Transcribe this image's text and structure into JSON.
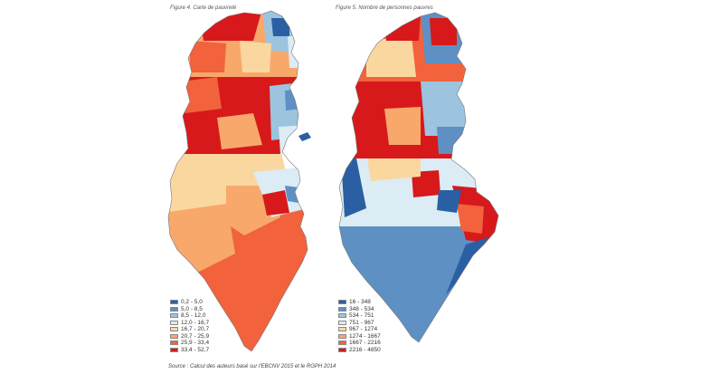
{
  "figure_left": {
    "title": "Figure 4. Carte de pauvreté",
    "legend": [
      {
        "label": "0,2 - 5,0",
        "color": "#2b5fa3"
      },
      {
        "label": "5,0 - 8,5",
        "color": "#5e90c4"
      },
      {
        "label": "8,5 - 12,0",
        "color": "#9cc4de"
      },
      {
        "label": "12,0 - 16,7",
        "color": "#dcecf4"
      },
      {
        "label": "16,7 - 20,7",
        "color": "#fbd7a0"
      },
      {
        "label": "20,7 - 25,9",
        "color": "#f7a86a"
      },
      {
        "label": "25,9 - 33,4",
        "color": "#f2623c"
      },
      {
        "label": "33,4 - 52,7",
        "color": "#d7191c"
      }
    ]
  },
  "figure_right": {
    "title": "Figure 5. Nombre de personnes pauvres",
    "legend": [
      {
        "label": "16 - 348",
        "color": "#2b5fa3"
      },
      {
        "label": "348 - 534",
        "color": "#5e90c4"
      },
      {
        "label": "534 - 751",
        "color": "#9cc4de"
      },
      {
        "label": "751 - 967",
        "color": "#dcecf4"
      },
      {
        "label": "967 - 1274",
        "color": "#fbd7a0"
      },
      {
        "label": "1274 - 1667",
        "color": "#f7a86a"
      },
      {
        "label": "1667 - 2216",
        "color": "#f2623c"
      },
      {
        "label": "2216 - 4850",
        "color": "#d7191c"
      }
    ]
  },
  "source": "Source : Calcul des auteurs basé sur l'EBCNV 2015 et le RGPH 2014"
}
